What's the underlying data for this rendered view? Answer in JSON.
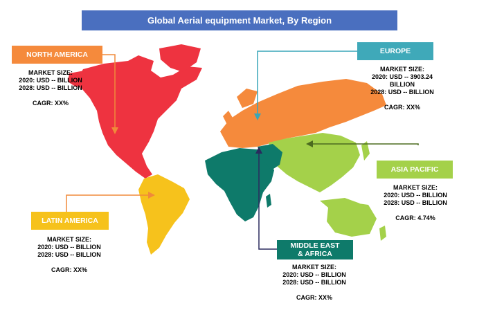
{
  "title": "Global Aerial equipment Market, By Region",
  "colors": {
    "title_bg": "#4a6fbf",
    "north_america": "#ee3340",
    "europe": "#f58a3c",
    "asia_pacific": "#a4d14a",
    "latin_america": "#f6c21c",
    "middle_east_africa": "#0e7a6a",
    "connector_orange": "#f08a3a",
    "connector_teal": "#39a6b8",
    "connector_green": "#4b6b1f",
    "connector_navy": "#2a2a5e"
  },
  "regions": {
    "north_america": {
      "label": "NORTH   AMERICA",
      "market_size_label": "MARKET SIZE:",
      "y2020": "2020: USD -- BILLION",
      "y2028": "2028: USD -- BILLION",
      "cagr": "CAGR: XX%"
    },
    "europe": {
      "label": "EUROPE",
      "market_size_label": "MARKET SIZE:",
      "y2020": "2020: USD -- 3903.24",
      "y2020_cont": "BILLION",
      "y2028": "2028: USD -- BILLION",
      "cagr": "CAGR: XX%"
    },
    "asia_pacific": {
      "label": "ASIA PACIFIC",
      "market_size_label": "MARKET SIZE:",
      "y2020": "2020: USD -- BILLION",
      "y2028": "2028: USD -- BILLION",
      "cagr": "CAGR: 4.74%"
    },
    "latin_america": {
      "label": "LATIN  AMERICA",
      "market_size_label": "MARKET SIZE:",
      "y2020": "2020: USD -- BILLION",
      "y2028": "2028: USD -- BILLION",
      "cagr": "CAGR: XX%"
    },
    "middle_east_africa": {
      "label": "MIDDLE EAST\n& AFRICA",
      "market_size_label": "MARKET SIZE:",
      "y2020": "2020: USD -- BILLION",
      "y2028": "2028: USD -- BILLION",
      "cagr": "CAGR: XX%"
    }
  }
}
